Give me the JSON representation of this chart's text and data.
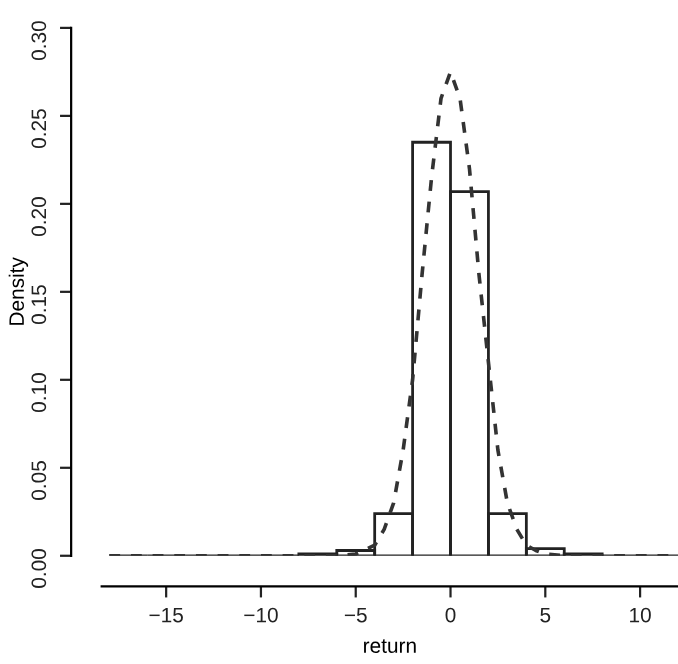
{
  "chart_data": {
    "type": "histogram",
    "xlabel": "return",
    "ylabel": "Density",
    "bins": [
      -18,
      -16,
      -14,
      -12,
      -10,
      -8,
      -6,
      -4,
      -2,
      0,
      2,
      4,
      6,
      8,
      10,
      12
    ],
    "values": [
      0,
      0,
      0,
      0,
      0,
      0.001,
      0.003,
      0.024,
      0.235,
      0.207,
      0.024,
      0.004,
      0.001,
      0,
      0
    ],
    "color": "#222222",
    "series": [
      {
        "type": "line",
        "line_style": "dashed",
        "color": "#333333",
        "x": [
          -18,
          -14,
          -10,
          -8,
          -6,
          -5,
          -4,
          -3.5,
          -3,
          -2.5,
          -2,
          -1.5,
          -1,
          -0.5,
          0,
          0.5,
          1,
          1.5,
          2,
          2.5,
          3,
          3.5,
          4,
          4.5,
          5,
          6,
          8,
          10,
          12
        ],
        "values": [
          0,
          0,
          0,
          0,
          0,
          0.001,
          0.006,
          0.015,
          0.03,
          0.06,
          0.1,
          0.16,
          0.215,
          0.26,
          0.275,
          0.26,
          0.22,
          0.16,
          0.11,
          0.06,
          0.03,
          0.015,
          0.006,
          0.003,
          0.001,
          0,
          0,
          0,
          0
        ]
      }
    ],
    "xlim": [
      -18.4,
      12
    ],
    "ylim": [
      0,
      0.3
    ],
    "xticks": [
      {
        "value": -15,
        "label": "−15"
      },
      {
        "value": -10,
        "label": "−10"
      },
      {
        "value": -5,
        "label": "−5"
      },
      0,
      5,
      10
    ],
    "yticks": [
      {
        "value": 0,
        "label": "0.00"
      },
      {
        "value": 0.05,
        "label": "0.05"
      },
      {
        "value": 0.1,
        "label": "0.10"
      },
      {
        "value": 0.15,
        "label": "0.15"
      },
      {
        "value": 0.2,
        "label": "0.20"
      },
      {
        "value": 0.25,
        "label": "0.25"
      },
      {
        "value": 0.3,
        "label": "0.30"
      }
    ],
    "grid": false,
    "legend": false
  }
}
